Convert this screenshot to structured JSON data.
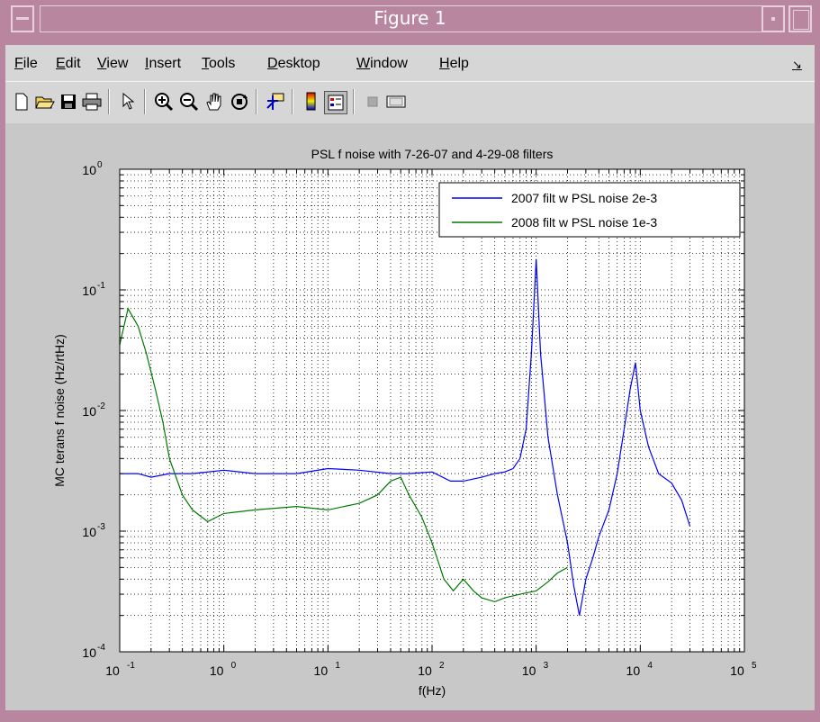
{
  "window": {
    "title": "Figure 1"
  },
  "menu": [
    {
      "label": "File"
    },
    {
      "label": "Edit"
    },
    {
      "label": "View"
    },
    {
      "label": "Insert"
    },
    {
      "label": "Tools"
    },
    {
      "label": "Desktop"
    },
    {
      "label": "Window"
    },
    {
      "label": "Help"
    }
  ],
  "toolbar": {
    "icons": [
      "new-file-icon",
      "open-folder-icon",
      "save-icon",
      "print-icon",
      "pointer-icon",
      "zoom-in-icon",
      "zoom-out-icon",
      "pan-hand-icon",
      "rotate-3d-icon",
      "data-cursor-icon",
      "colorbar-icon",
      "legend-icon",
      "hide-plot-tools-icon",
      "show-plot-tools-icon"
    ]
  },
  "chart_data": {
    "type": "line",
    "title": "PSL f noise with 7-26-07 and 4-29-08 filters",
    "xlabel": "f(Hz)",
    "ylabel": "MC terans f noise (Hz/rtHz)",
    "xscale": "log",
    "yscale": "log",
    "xlim": [
      0.1,
      100000
    ],
    "ylim": [
      0.0001,
      1
    ],
    "xticks": [
      {
        "base": "10",
        "exp": "-1"
      },
      {
        "base": "10",
        "exp": "0"
      },
      {
        "base": "10",
        "exp": "1"
      },
      {
        "base": "10",
        "exp": "2"
      },
      {
        "base": "10",
        "exp": "3"
      },
      {
        "base": "10",
        "exp": "4"
      },
      {
        "base": "10",
        "exp": "5"
      }
    ],
    "yticks": [
      {
        "base": "10",
        "exp": "-4"
      },
      {
        "base": "10",
        "exp": "-3"
      },
      {
        "base": "10",
        "exp": "-2"
      },
      {
        "base": "10",
        "exp": "-1"
      },
      {
        "base": "10",
        "exp": "0"
      }
    ],
    "grid": true,
    "legend_position": "top-right",
    "series": [
      {
        "name": "2007 filt w PSL noise 2e-3",
        "color": "#0000ff",
        "x": [
          0.1,
          0.15,
          0.2,
          0.3,
          0.5,
          1,
          2,
          5,
          10,
          20,
          40,
          60,
          100,
          150,
          200,
          300,
          400,
          500,
          600,
          700,
          800,
          900,
          1000,
          1100,
          1300,
          1600,
          2000,
          2300,
          2600,
          3000,
          3500,
          4000,
          5000,
          6000,
          7000,
          8000,
          9000,
          10000,
          12000,
          15000,
          20000,
          25000,
          30000
        ],
        "y": [
          0.003,
          0.003,
          0.0028,
          0.003,
          0.003,
          0.0032,
          0.003,
          0.003,
          0.0033,
          0.0032,
          0.003,
          0.003,
          0.0031,
          0.0026,
          0.0026,
          0.0028,
          0.003,
          0.0031,
          0.0033,
          0.004,
          0.007,
          0.03,
          0.18,
          0.03,
          0.006,
          0.002,
          0.0008,
          0.00035,
          0.0002,
          0.0004,
          0.0006,
          0.0009,
          0.0015,
          0.003,
          0.007,
          0.015,
          0.025,
          0.01,
          0.005,
          0.003,
          0.0025,
          0.0018,
          0.0011
        ]
      },
      {
        "name": "2008 filt w PSL noise 1e-3",
        "color": "#007a00",
        "x": [
          0.1,
          0.12,
          0.15,
          0.18,
          0.22,
          0.26,
          0.3,
          0.4,
          0.5,
          0.7,
          1,
          2,
          5,
          10,
          20,
          30,
          40,
          50,
          60,
          80,
          100,
          130,
          160,
          200,
          250,
          300,
          400,
          500,
          700,
          1000,
          1300,
          1600,
          2000
        ],
        "y": [
          0.035,
          0.07,
          0.05,
          0.03,
          0.015,
          0.008,
          0.004,
          0.002,
          0.0015,
          0.0012,
          0.0014,
          0.0015,
          0.0016,
          0.0015,
          0.0017,
          0.002,
          0.0026,
          0.0028,
          0.002,
          0.0013,
          0.0008,
          0.0004,
          0.00032,
          0.0004,
          0.00032,
          0.00028,
          0.00026,
          0.00028,
          0.0003,
          0.00032,
          0.00038,
          0.00045,
          0.0005
        ]
      }
    ]
  }
}
